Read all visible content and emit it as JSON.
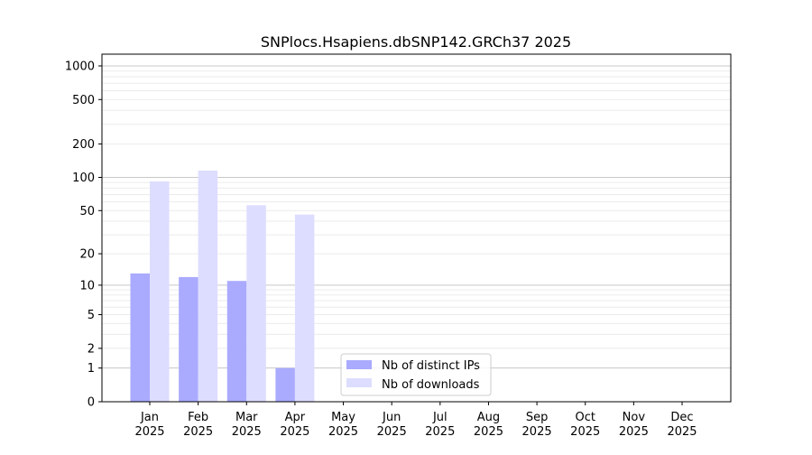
{
  "chart_data": {
    "type": "bar",
    "title": "SNPlocs.Hsapiens.dbSNP142.GRCh37 2025",
    "xlabel": "",
    "ylabel": "",
    "yscale": "log(1+y)",
    "ylim": [
      0,
      1200
    ],
    "yticks": [
      0,
      1,
      2,
      5,
      10,
      20,
      50,
      100,
      200,
      500,
      1000
    ],
    "grid": true,
    "legend_position": "lower-center",
    "categories": [
      [
        "Jan",
        "2025"
      ],
      [
        "Feb",
        "2025"
      ],
      [
        "Mar",
        "2025"
      ],
      [
        "Apr",
        "2025"
      ],
      [
        "May",
        "2025"
      ],
      [
        "Jun",
        "2025"
      ],
      [
        "Jul",
        "2025"
      ],
      [
        "Aug",
        "2025"
      ],
      [
        "Sep",
        "2025"
      ],
      [
        "Oct",
        "2025"
      ],
      [
        "Nov",
        "2025"
      ],
      [
        "Dec",
        "2025"
      ]
    ],
    "series": [
      {
        "name": "Nb of distinct IPs",
        "color": "#aaaaff",
        "values": [
          13,
          12,
          11,
          1,
          null,
          null,
          null,
          null,
          null,
          null,
          null,
          null
        ]
      },
      {
        "name": "Nb of downloads",
        "color": "#ddddff",
        "values": [
          92,
          115,
          56,
          46,
          null,
          null,
          null,
          null,
          null,
          null,
          null,
          null
        ]
      }
    ]
  }
}
